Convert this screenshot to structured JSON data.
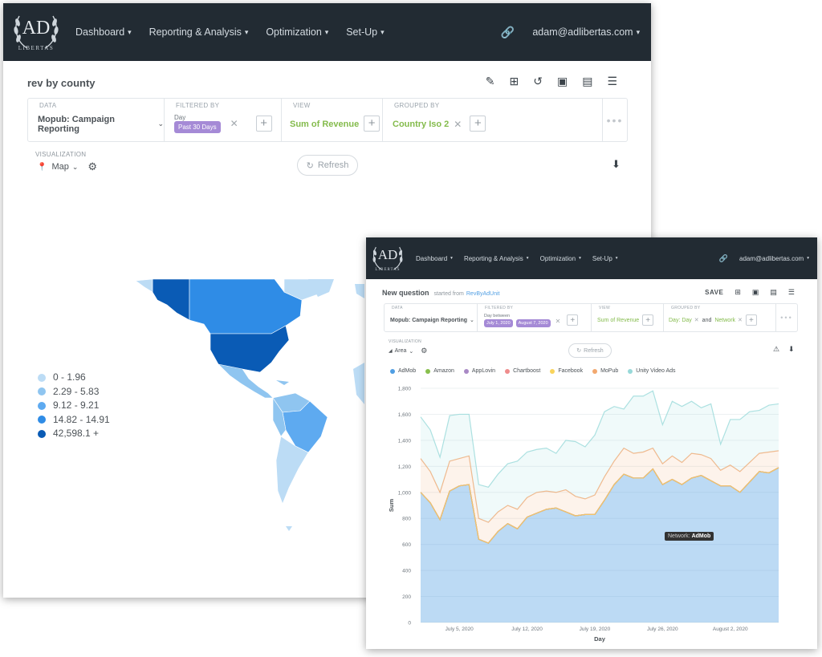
{
  "nav": {
    "logo_mark": "AD",
    "logo_sub": "LIBERTAS",
    "items": [
      "Dashboard",
      "Reporting & Analysis",
      "Optimization",
      "Set-Up"
    ],
    "user": "adam@adlibertas.com"
  },
  "win1": {
    "title": "rev by county",
    "data_label": "DATA",
    "data_value": "Mopub: Campaign Reporting",
    "filtered_label": "FILTERED BY",
    "filter_field": "Day",
    "filter_value": "Past 30 Days",
    "view_label": "VIEW",
    "view_value": "Sum of Revenue",
    "grouped_label": "GROUPED BY",
    "grouped_value": "Country Iso 2",
    "viz_label": "VISUALIZATION",
    "viz_value": "Map",
    "refresh": "Refresh",
    "legend": [
      {
        "label": "0 - 1.96",
        "color": "#bcdcf5"
      },
      {
        "label": "2.29 - 5.83",
        "color": "#8fc5f0"
      },
      {
        "label": "9.12 - 9.21",
        "color": "#5eaaf0"
      },
      {
        "label": "14.82 - 14.91",
        "color": "#2f8ce6"
      },
      {
        "label": "42,598.1 +",
        "color": "#0a5bb5"
      }
    ]
  },
  "win2": {
    "title": "New question",
    "started_from": "started from",
    "source_link": "RevByAdUnit",
    "save": "SAVE",
    "data_label": "DATA",
    "data_value": "Mopub: Campaign Reporting",
    "filtered_label": "FILTERED BY",
    "filter_field": "Day between",
    "filter_from": "July 1, 2020",
    "filter_to": "August 7, 2020",
    "view_label": "VIEW",
    "view_value": "Sum of Revenue",
    "grouped_label": "GROUPED BY",
    "grouped_value1": "Day: Day",
    "grouped_and": "and",
    "grouped_value2": "Network",
    "viz_label": "VISUALIZATION",
    "viz_value": "Area",
    "refresh": "Refresh",
    "tooltip_label": "Network:",
    "tooltip_value": "AdMob"
  },
  "chart_data": {
    "type": "area",
    "xlabel": "Day",
    "ylabel": "Sum",
    "ylim": [
      0,
      1800
    ],
    "yticks": [
      0,
      200,
      400,
      600,
      800,
      1000,
      1200,
      1400,
      1600,
      1800
    ],
    "xtick_labels": [
      "July 5, 2020",
      "July 12, 2020",
      "July 19, 2020",
      "July 26, 2020",
      "August 2, 2020"
    ],
    "x": [
      "2020-07-01",
      "2020-07-02",
      "2020-07-03",
      "2020-07-04",
      "2020-07-05",
      "2020-07-06",
      "2020-07-07",
      "2020-07-08",
      "2020-07-09",
      "2020-07-10",
      "2020-07-11",
      "2020-07-12",
      "2020-07-13",
      "2020-07-14",
      "2020-07-15",
      "2020-07-16",
      "2020-07-17",
      "2020-07-18",
      "2020-07-19",
      "2020-07-20",
      "2020-07-21",
      "2020-07-22",
      "2020-07-23",
      "2020-07-24",
      "2020-07-25",
      "2020-07-26",
      "2020-07-27",
      "2020-07-28",
      "2020-07-29",
      "2020-07-30",
      "2020-07-31",
      "2020-08-01",
      "2020-08-02",
      "2020-08-03",
      "2020-08-04",
      "2020-08-05",
      "2020-08-06",
      "2020-08-07"
    ],
    "stacked": true,
    "series": [
      {
        "name": "AdMob",
        "color": "#509ee3",
        "values": [
          1000,
          920,
          790,
          1010,
          1050,
          1060,
          640,
          610,
          700,
          760,
          720,
          810,
          840,
          870,
          880,
          850,
          820,
          830,
          830,
          940,
          1060,
          1140,
          1110,
          1110,
          1180,
          1060,
          1100,
          1060,
          1110,
          1130,
          1090,
          1050,
          1050,
          1000,
          1080,
          1160,
          1150,
          1190
        ]
      },
      {
        "name": "Amazon",
        "color": "#88bf4d",
        "values": [
          0,
          0,
          0,
          0,
          0,
          0,
          0,
          0,
          0,
          0,
          0,
          0,
          0,
          0,
          0,
          0,
          0,
          0,
          0,
          0,
          0,
          0,
          0,
          0,
          0,
          0,
          0,
          0,
          0,
          0,
          0,
          0,
          0,
          0,
          0,
          0,
          0,
          0
        ]
      },
      {
        "name": "AppLovin",
        "color": "#a989c5",
        "values": [
          0,
          0,
          0,
          0,
          0,
          0,
          0,
          0,
          0,
          0,
          0,
          0,
          0,
          0,
          0,
          0,
          0,
          0,
          0,
          0,
          0,
          0,
          0,
          0,
          0,
          0,
          0,
          0,
          0,
          0,
          0,
          0,
          0,
          0,
          0,
          0,
          0,
          0
        ]
      },
      {
        "name": "Chartboost",
        "color": "#ef8c8c",
        "values": [
          0,
          0,
          0,
          0,
          0,
          0,
          0,
          0,
          0,
          0,
          0,
          0,
          0,
          0,
          0,
          0,
          0,
          0,
          0,
          0,
          0,
          0,
          0,
          0,
          0,
          0,
          0,
          0,
          0,
          0,
          0,
          0,
          0,
          0,
          0,
          0,
          0,
          0
        ]
      },
      {
        "name": "Facebook",
        "color": "#f9d45c",
        "values": [
          0,
          0,
          0,
          0,
          0,
          0,
          0,
          0,
          0,
          0,
          0,
          0,
          0,
          0,
          0,
          0,
          0,
          0,
          0,
          0,
          0,
          0,
          0,
          0,
          0,
          0,
          0,
          0,
          0,
          0,
          0,
          0,
          0,
          0,
          0,
          0,
          0,
          0
        ]
      },
      {
        "name": "MoPub",
        "color": "#f2a86f",
        "values": [
          260,
          240,
          210,
          230,
          210,
          220,
          160,
          160,
          150,
          140,
          150,
          150,
          160,
          140,
          120,
          170,
          150,
          120,
          150,
          180,
          180,
          200,
          190,
          200,
          160,
          160,
          180,
          170,
          190,
          160,
          170,
          120,
          160,
          160,
          150,
          140,
          160,
          130
        ]
      },
      {
        "name": "Unity Video Ads",
        "color": "#98d9d9",
        "values": [
          320,
          320,
          270,
          350,
          340,
          320,
          260,
          270,
          290,
          320,
          370,
          350,
          330,
          330,
          300,
          380,
          420,
          400,
          460,
          500,
          420,
          300,
          440,
          430,
          440,
          300,
          420,
          430,
          400,
          360,
          420,
          200,
          350,
          400,
          390,
          330,
          360,
          360
        ]
      }
    ]
  }
}
